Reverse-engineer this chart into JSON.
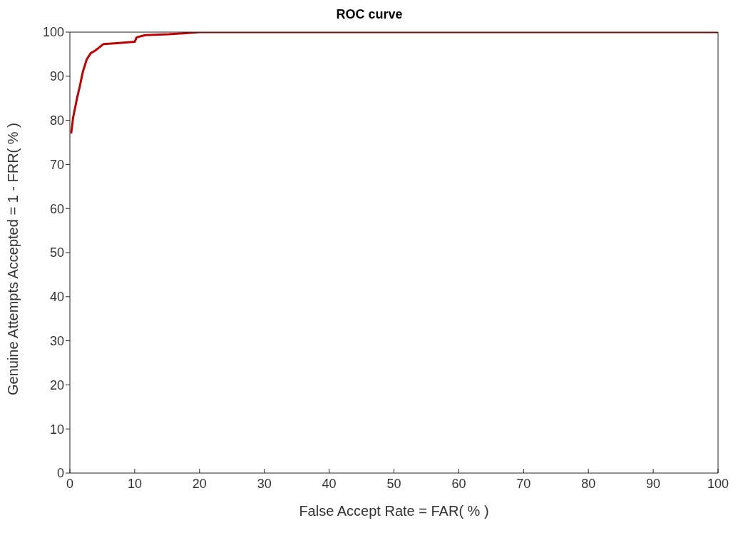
{
  "chart_data": {
    "type": "line",
    "title": "ROC curve",
    "xlabel": "False Accept Rate = FAR( % )",
    "ylabel": "Genuine Attempts Accepted = 1 - FRR( % )",
    "x": [
      0.2,
      0.5,
      1.1,
      1.5,
      2,
      2.6,
      3.2,
      3.9,
      5.2,
      7.3,
      10,
      10.3,
      11.6,
      15.2,
      18.2,
      20,
      100
    ],
    "series": [
      {
        "color": "#c00000",
        "values": [
          77,
          80.6,
          85,
          87.5,
          91,
          93.8,
          95.2,
          95.8,
          97.3,
          97.5,
          97.8,
          98.8,
          99.3,
          99.5,
          99.8,
          100,
          100
        ]
      }
    ],
    "xlim": [
      0,
      100
    ],
    "ylim": [
      0,
      100
    ],
    "xticks": [
      0,
      10,
      20,
      30,
      40,
      50,
      60,
      70,
      80,
      90,
      100
    ],
    "yticks": [
      0,
      10,
      20,
      30,
      40,
      50,
      60,
      70,
      80,
      90,
      100
    ],
    "grid": false,
    "legend": false,
    "marker": "none",
    "line_style": "solid"
  }
}
